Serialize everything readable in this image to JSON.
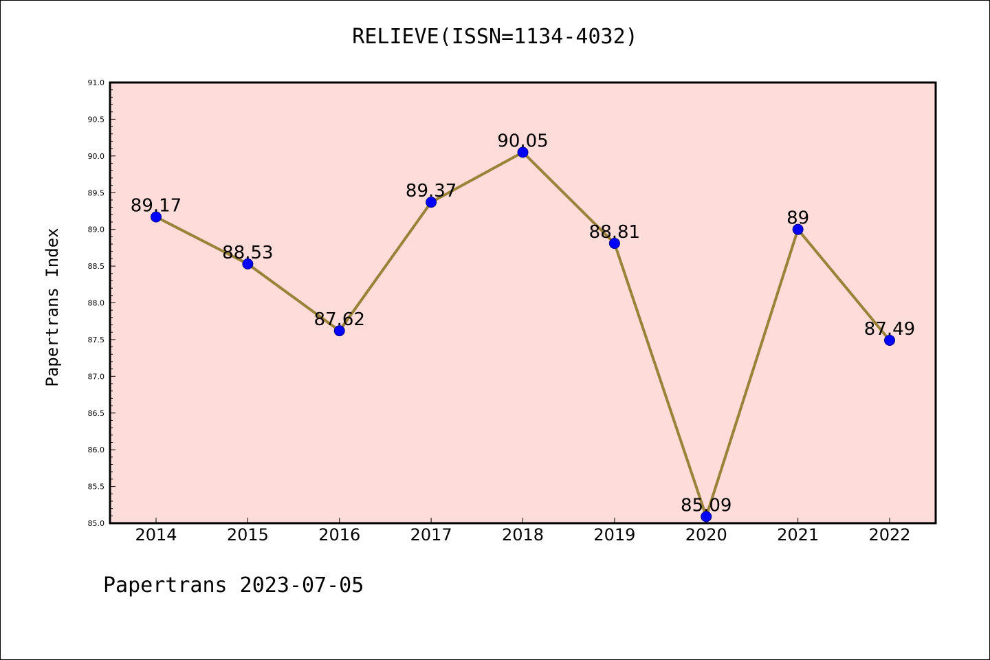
{
  "colors": {
    "plot_background": "#fddcd9",
    "line": "#9a8238",
    "marker": "#0000ff",
    "marker_edge": "#00008b"
  },
  "chart_data": {
    "type": "line",
    "title": "RELIEVE(ISSN=1134-4032)",
    "xlabel": "",
    "ylabel": "Papertrans Index",
    "categories": [
      "2014",
      "2015",
      "2016",
      "2017",
      "2018",
      "2019",
      "2020",
      "2021",
      "2022"
    ],
    "series": [
      {
        "values": [
          89.17,
          88.53,
          87.62,
          89.37,
          90.05,
          88.81,
          85.09,
          89,
          87.49
        ],
        "labels": [
          "89.17",
          "88.53",
          "87.62",
          "89.37",
          "90.05",
          "88.81",
          "85.09",
          "89",
          "87.49"
        ]
      }
    ],
    "ylim": [
      85.0,
      91.0
    ],
    "yticks": [
      "85.0",
      "85.5",
      "86.0",
      "86.5",
      "87.0",
      "87.5",
      "88.0",
      "88.5",
      "89.0",
      "89.5",
      "90.0",
      "90.5",
      "91.0"
    ],
    "grid": false,
    "legend": "none"
  },
  "footer": {
    "text": "Papertrans 2023-07-05"
  }
}
